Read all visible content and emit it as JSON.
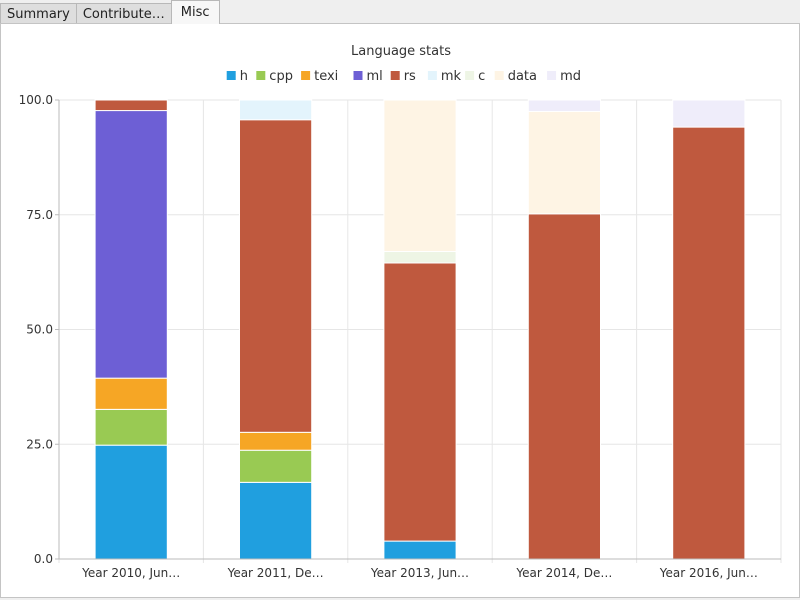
{
  "tabs": [
    {
      "label": "Summary",
      "active": false
    },
    {
      "label": "Contribute…",
      "active": false
    },
    {
      "label": "Misc",
      "active": true
    }
  ],
  "chart_data": {
    "type": "bar",
    "stacked": true,
    "title": "Language stats",
    "xlabel": "",
    "ylabel": "",
    "ylim": [
      0,
      100
    ],
    "yticks": [
      "0.0",
      "25.0",
      "50.0",
      "75.0",
      "100.0"
    ],
    "grid": true,
    "legend_position": "top",
    "categories": [
      "Year 2010, Jun…",
      "Year 2011, De…",
      "Year 2013, Jun…",
      "Year 2014, De…",
      "Year 2016, Jun…"
    ],
    "series": [
      {
        "name": "h",
        "color": "#209fdf",
        "values": [
          24.8,
          16.7,
          3.9,
          0,
          0
        ]
      },
      {
        "name": "cpp",
        "color": "#99ca53",
        "values": [
          7.8,
          7.0,
          0,
          0,
          0
        ]
      },
      {
        "name": "texi",
        "color": "#f6a625",
        "values": [
          6.8,
          3.9,
          0,
          0,
          0
        ]
      },
      {
        "name": "ml",
        "color": "#6d5fd5",
        "values": [
          58.3,
          0,
          0,
          0,
          0
        ]
      },
      {
        "name": "rs",
        "color": "#bf593e",
        "values": [
          2.3,
          68.1,
          60.6,
          75.2,
          94.1
        ]
      },
      {
        "name": "mk",
        "color": "#e3f4fc",
        "values": [
          0,
          4.3,
          0,
          0,
          0
        ]
      },
      {
        "name": "c",
        "color": "#eef5e5",
        "values": [
          0,
          0,
          2.5,
          0,
          0
        ]
      },
      {
        "name": "data",
        "color": "#fef4e4",
        "values": [
          0,
          0,
          33.0,
          22.3,
          0
        ]
      },
      {
        "name": "md",
        "color": "#efedfa",
        "values": [
          0,
          0,
          0,
          2.5,
          5.9
        ]
      }
    ]
  }
}
